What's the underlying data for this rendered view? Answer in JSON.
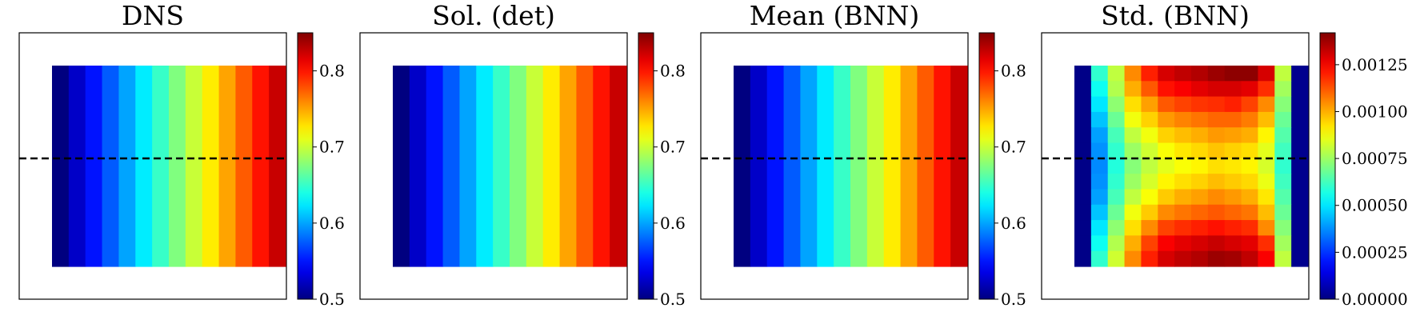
{
  "chart_data": [
    {
      "type": "heatmap",
      "title": "DNS",
      "colormap": "jet",
      "dashed_line": true,
      "colorbar": {
        "range": [
          0.5,
          0.85
        ],
        "ticks": [
          "0.5",
          "0.6",
          "0.7",
          "0.8"
        ],
        "tick_values": [
          0.5,
          0.6,
          0.7,
          0.8
        ]
      },
      "grid": [
        [
          0.5,
          0.525,
          0.55,
          0.575,
          0.6,
          0.625,
          0.65,
          0.675,
          0.7,
          0.725,
          0.75,
          0.775,
          0.8,
          0.825
        ]
      ]
    },
    {
      "type": "heatmap",
      "title": "Sol. (det)",
      "colormap": "jet",
      "dashed_line": false,
      "colorbar": {
        "range": [
          0.5,
          0.85
        ],
        "ticks": [
          "0.5",
          "0.6",
          "0.7",
          "0.8"
        ],
        "tick_values": [
          0.5,
          0.6,
          0.7,
          0.8
        ]
      },
      "grid": [
        [
          0.5,
          0.525,
          0.55,
          0.575,
          0.6,
          0.625,
          0.65,
          0.675,
          0.7,
          0.725,
          0.75,
          0.775,
          0.8,
          0.825
        ]
      ]
    },
    {
      "type": "heatmap",
      "title": "Mean (BNN)",
      "colormap": "jet",
      "dashed_line": true,
      "colorbar": {
        "range": [
          0.5,
          0.85
        ],
        "ticks": [
          "0.5",
          "0.6",
          "0.7",
          "0.8"
        ],
        "tick_values": [
          0.5,
          0.6,
          0.7,
          0.8
        ]
      },
      "grid": [
        [
          0.5,
          0.525,
          0.55,
          0.575,
          0.6,
          0.625,
          0.65,
          0.675,
          0.7,
          0.725,
          0.75,
          0.775,
          0.8,
          0.825
        ]
      ]
    },
    {
      "type": "heatmap",
      "title": "Std. (BNN)",
      "colormap": "jet",
      "dashed_line": true,
      "colorbar": {
        "range": [
          0,
          0.00142
        ],
        "ticks": [
          "0.00000",
          "0.00025",
          "0.00050",
          "0.00075",
          "0.00100",
          "0.00125"
        ],
        "tick_values": [
          0,
          0.00025,
          0.0005,
          0.00075,
          0.001,
          0.00125
        ]
      },
      "grid": [
        [
          1e-05,
          0.0006,
          0.0008,
          0.00105,
          0.0012,
          0.0013,
          0.00133,
          0.00135,
          0.00138,
          0.0014,
          0.0014,
          0.0013,
          0.0008,
          2e-05
        ],
        [
          1e-05,
          0.00055,
          0.00078,
          0.001,
          0.00112,
          0.00122,
          0.00125,
          0.00128,
          0.0013,
          0.0013,
          0.00128,
          0.00118,
          0.00076,
          2e-05
        ],
        [
          1e-05,
          0.0005,
          0.00073,
          0.00093,
          0.00102,
          0.00112,
          0.00115,
          0.00117,
          0.00118,
          0.0012,
          0.00115,
          0.00105,
          0.00072,
          2e-05
        ],
        [
          1e-05,
          0.00045,
          0.00068,
          0.00087,
          0.00095,
          0.00103,
          0.00106,
          0.00108,
          0.0011,
          0.0011,
          0.00107,
          0.00098,
          0.00068,
          2e-05
        ],
        [
          1e-05,
          0.0004,
          0.00063,
          0.0008,
          0.00087,
          0.00095,
          0.00098,
          0.001,
          0.00103,
          0.00102,
          0.001,
          0.0009,
          0.00065,
          2e-05
        ],
        [
          1e-05,
          0.00038,
          0.0006,
          0.00075,
          0.00082,
          0.00088,
          0.00092,
          0.00094,
          0.00097,
          0.00095,
          0.00093,
          0.00085,
          0.00062,
          2e-05
        ],
        [
          1e-05,
          0.00037,
          0.00058,
          0.00072,
          0.0008,
          0.00085,
          0.00088,
          0.0009,
          0.00093,
          0.00092,
          0.0009,
          0.00083,
          0.0006,
          2e-05
        ],
        [
          1e-05,
          0.00038,
          0.0006,
          0.00075,
          0.00083,
          0.0009,
          0.00093,
          0.00095,
          0.00098,
          0.00096,
          0.00094,
          0.00086,
          0.00062,
          2e-05
        ],
        [
          1e-05,
          0.0004,
          0.00063,
          0.0008,
          0.00088,
          0.00096,
          0.001,
          0.00102,
          0.00105,
          0.00103,
          0.001,
          0.00092,
          0.00065,
          2e-05
        ],
        [
          1e-05,
          0.00045,
          0.00068,
          0.00087,
          0.00096,
          0.00105,
          0.00108,
          0.0011,
          0.00112,
          0.0011,
          0.00108,
          0.00098,
          0.00068,
          2e-05
        ],
        [
          1e-05,
          0.0005,
          0.00073,
          0.00093,
          0.00105,
          0.00115,
          0.00118,
          0.0012,
          0.00122,
          0.0012,
          0.00118,
          0.00105,
          0.00072,
          2e-05
        ],
        [
          1e-05,
          0.00055,
          0.00078,
          0.001,
          0.00115,
          0.00125,
          0.00128,
          0.0013,
          0.00132,
          0.0013,
          0.00128,
          0.00118,
          0.00076,
          2e-05
        ],
        [
          1e-05,
          0.0006,
          0.00082,
          0.00105,
          0.0012,
          0.0013,
          0.00133,
          0.00135,
          0.00138,
          0.00137,
          0.00133,
          0.00125,
          0.0008,
          2e-05
        ]
      ]
    }
  ]
}
